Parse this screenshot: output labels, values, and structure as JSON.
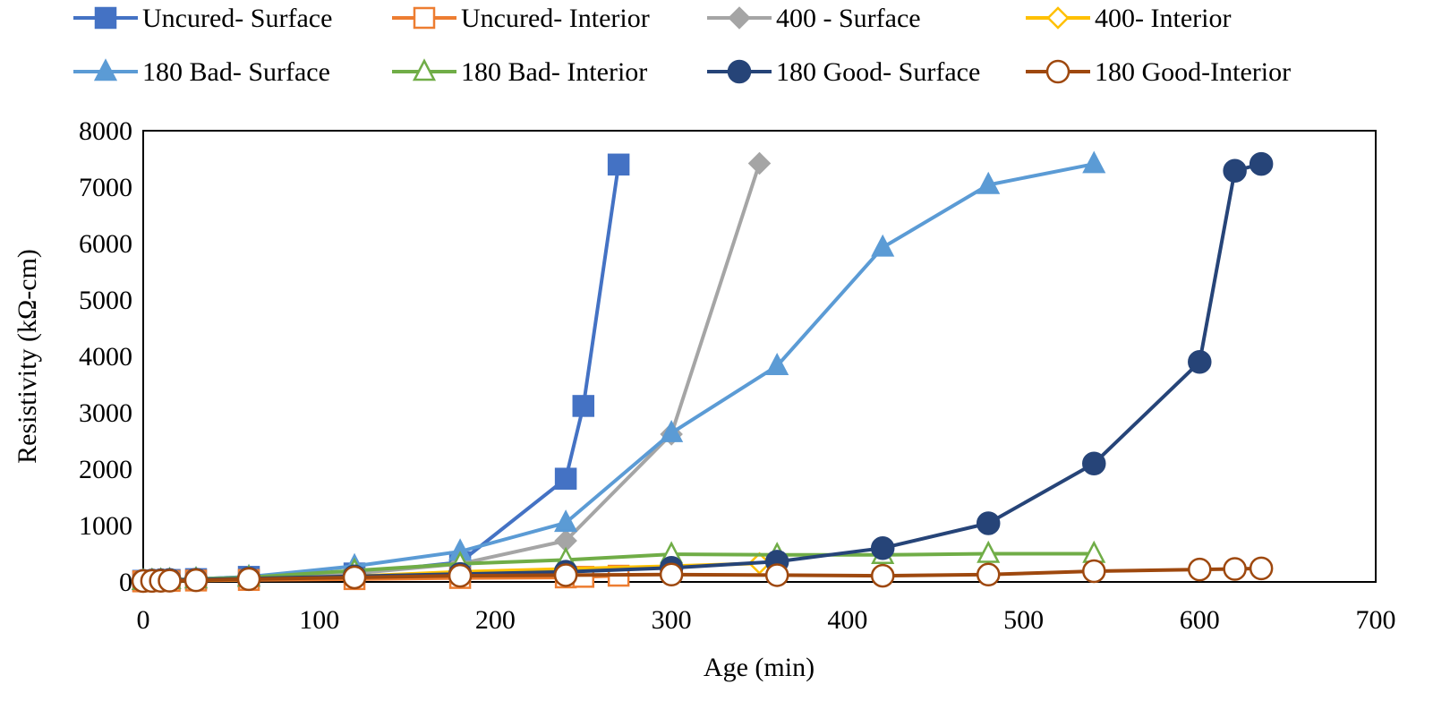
{
  "chart_data": {
    "type": "line",
    "title": "",
    "xlabel": "Age (min)",
    "ylabel": "Resistivity (kΩ-cm)",
    "xlim": [
      0,
      700
    ],
    "ylim": [
      0,
      8000
    ],
    "x_ticks": [
      0,
      100,
      200,
      300,
      400,
      500,
      600,
      700
    ],
    "y_ticks": [
      0,
      1000,
      2000,
      3000,
      4000,
      5000,
      6000,
      7000,
      8000
    ],
    "grid": false,
    "legend_position": "top",
    "series": [
      {
        "name": "Uncured- Surface",
        "color": "#4472C4",
        "marker": "square-filled",
        "x": [
          0,
          5,
          10,
          15,
          30,
          60,
          120,
          180,
          240,
          250,
          270
        ],
        "y": [
          20,
          25,
          30,
          35,
          50,
          90,
          150,
          350,
          1830,
          3120,
          7400
        ]
      },
      {
        "name": "Uncured- Interior",
        "color": "#ED7D31",
        "marker": "square-open",
        "x": [
          0,
          5,
          10,
          15,
          30,
          60,
          120,
          180,
          240,
          250,
          270
        ],
        "y": [
          10,
          12,
          15,
          18,
          25,
          35,
          50,
          70,
          80,
          90,
          110
        ]
      },
      {
        "name": "400 - Surface",
        "color": "#A5A5A5",
        "marker": "diamond-filled",
        "x": [
          0,
          5,
          10,
          15,
          30,
          60,
          120,
          180,
          240,
          300,
          350
        ],
        "y": [
          20,
          25,
          30,
          35,
          45,
          70,
          150,
          320,
          730,
          2620,
          7420
        ]
      },
      {
        "name": "400- Interior",
        "color": "#FFC000",
        "marker": "diamond-open",
        "x": [
          0,
          5,
          10,
          15,
          30,
          60,
          120,
          180,
          240,
          300,
          350
        ],
        "y": [
          15,
          18,
          20,
          22,
          30,
          50,
          100,
          180,
          230,
          280,
          330
        ]
      },
      {
        "name": "180 Bad- Surface",
        "color": "#5B9BD5",
        "marker": "triangle-filled",
        "x": [
          0,
          5,
          10,
          15,
          30,
          60,
          120,
          180,
          240,
          300,
          360,
          420,
          480,
          540
        ],
        "y": [
          20,
          25,
          30,
          35,
          50,
          90,
          280,
          540,
          1050,
          2640,
          3830,
          5930,
          7040,
          7410
        ]
      },
      {
        "name": "180 Bad- Interior",
        "color": "#70AD47",
        "marker": "triangle-open",
        "x": [
          0,
          5,
          10,
          15,
          30,
          60,
          120,
          180,
          240,
          300,
          360,
          420,
          480,
          540
        ],
        "y": [
          20,
          25,
          30,
          35,
          50,
          80,
          200,
          320,
          390,
          490,
          480,
          480,
          500,
          500
        ]
      },
      {
        "name": "180 Good- Surface",
        "color": "#264478",
        "marker": "circle-filled",
        "x": [
          0,
          5,
          10,
          15,
          30,
          60,
          120,
          180,
          240,
          300,
          360,
          420,
          480,
          540,
          600,
          620,
          635
        ],
        "y": [
          20,
          25,
          30,
          35,
          40,
          60,
          100,
          140,
          180,
          250,
          360,
          600,
          1040,
          2100,
          3900,
          7290,
          7410
        ]
      },
      {
        "name": "180 Good-Interior",
        "color": "#9E480E",
        "marker": "circle-open",
        "x": [
          0,
          5,
          10,
          15,
          30,
          60,
          120,
          180,
          240,
          300,
          360,
          420,
          480,
          540,
          600,
          620,
          635
        ],
        "y": [
          15,
          18,
          20,
          22,
          30,
          50,
          80,
          110,
          120,
          130,
          120,
          110,
          130,
          190,
          220,
          230,
          240
        ]
      }
    ]
  }
}
